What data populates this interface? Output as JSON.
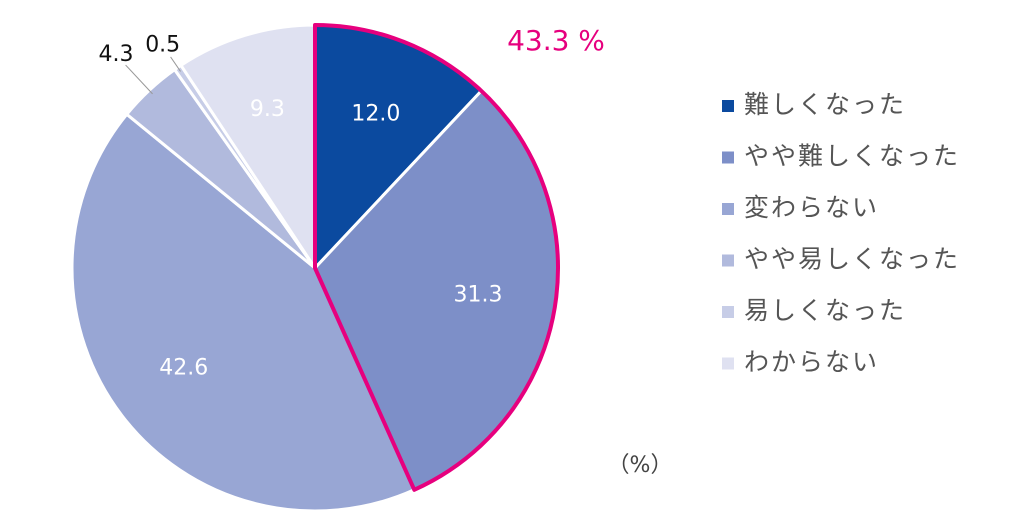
{
  "chart_data": {
    "type": "pie",
    "categories": [
      "難しくなった",
      "やや難しくなった",
      "変わらない",
      "やや易しくなった",
      "易しくなった",
      "わからない"
    ],
    "values": [
      12.0,
      31.3,
      42.6,
      4.3,
      0.5,
      9.3
    ],
    "value_labels": [
      "12.0",
      "31.3",
      "42.6",
      "4.3",
      "0.5",
      "9.3"
    ],
    "colors": [
      "#0b4a9f",
      "#7d8fc8",
      "#98a6d4",
      "#b1badd",
      "#c7cde7",
      "#dfe1f1"
    ],
    "highlight": [
      0,
      1
    ],
    "highlight_color": "#e6007e",
    "annotation": "43.3 %",
    "unit": "（%）"
  }
}
